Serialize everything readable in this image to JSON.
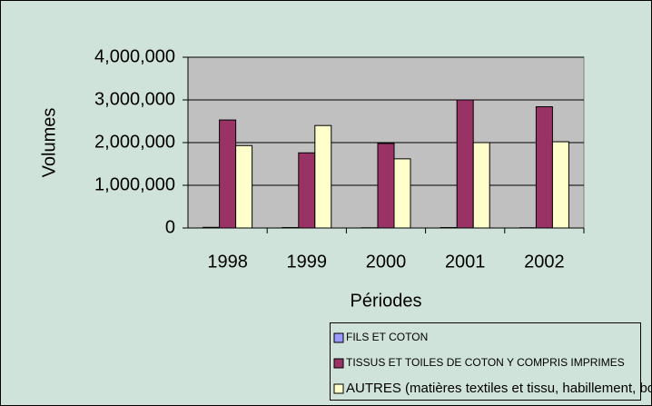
{
  "chart_data": {
    "type": "bar",
    "x_label": "Périodes",
    "y_label": "Volumes",
    "categories": [
      "1998",
      "1999",
      "2000",
      "2001",
      "2002"
    ],
    "series": [
      {
        "name": "FILS ET COTON",
        "color": "#9999ff",
        "values": [
          15000,
          10000,
          5000,
          10000,
          5000
        ]
      },
      {
        "name": "TISSUS ET TOILES DE COTON Y COMPRIS IMPRIMES",
        "color": "#993366",
        "values": [
          2530000,
          1760000,
          1980000,
          3000000,
          2840000
        ]
      },
      {
        "name": "AUTRES (matières textiles et tissu, habillement, bonneterie, vêtements)",
        "color": "#ffffcc",
        "values": [
          1930000,
          2400000,
          1620000,
          2000000,
          2020000
        ]
      }
    ],
    "ylim": [
      0,
      4000000
    ],
    "yticks": [
      0,
      {
        "value": 1000000,
        "label": "1,000,000"
      },
      {
        "value": 2000000,
        "label": "2,000,000"
      },
      {
        "value": 3000000,
        "label": "3,000,000"
      },
      {
        "value": 4000000,
        "label": "4,000,000"
      }
    ],
    "grid": true,
    "legend": "bottom"
  }
}
